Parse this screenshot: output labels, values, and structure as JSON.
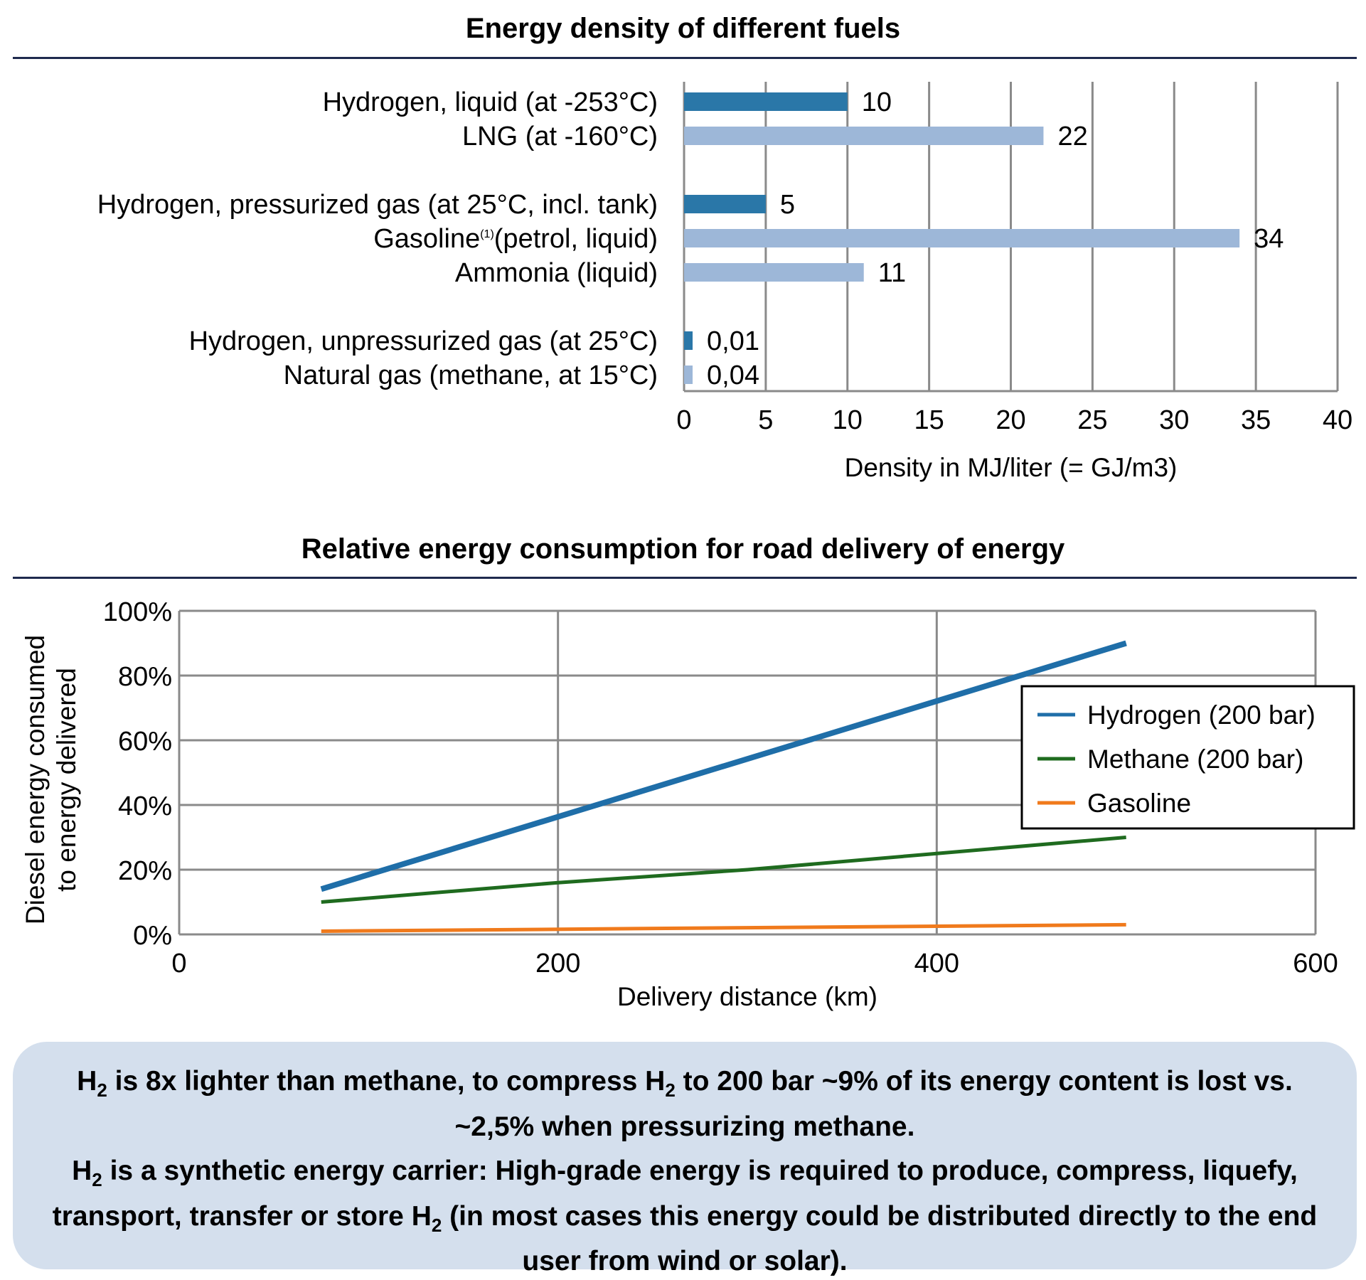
{
  "chart_data": [
    {
      "type": "bar",
      "orientation": "horizontal",
      "title": "Energy density of different fuels",
      "xlabel": "Density in MJ/liter (= GJ/m3)",
      "xlim": [
        0,
        40
      ],
      "xticks": [
        "0",
        "5",
        "10",
        "15",
        "20",
        "25",
        "30",
        "35",
        "40"
      ],
      "categories": [
        "Hydrogen, liquid (at -253°C)",
        "LNG (at -160°C)",
        "Hydrogen, pressurized gas (at 25°C, incl. tank)",
        "Gasoline(1)(petrol, liquid)",
        "Ammonia (liquid)",
        "Hydrogen, unpressurized gas (at 25°C)",
        "Natural gas (methane, at 15°C)"
      ],
      "category_parts": [
        {
          "main": "Hydrogen, liquid (at -253°C)"
        },
        {
          "main": "LNG (at -160°C)"
        },
        {
          "main": "Hydrogen, pressurized gas (at 25°C, incl. tank)"
        },
        {
          "main": "Gasoline",
          "sup": "(1)",
          "rest": "(petrol, liquid)"
        },
        {
          "main": "Ammonia (liquid)"
        },
        {
          "main": "Hydrogen, unpressurized gas (at 25°C)"
        },
        {
          "main": "Natural gas (methane, at 15°C)"
        }
      ],
      "values": [
        10,
        22,
        5,
        34,
        11,
        0.01,
        0.04
      ],
      "value_labels": [
        "10",
        "22",
        "5",
        "34",
        "11",
        "0,01",
        "0,04"
      ],
      "groups": [
        [
          0,
          1
        ],
        [
          2,
          3,
          4
        ],
        [
          5,
          6
        ]
      ],
      "bar_colors": [
        "#2a77a8",
        "#9db7d8",
        "#2a77a8",
        "#9db7d8",
        "#9db7d8",
        "#2a77a8",
        "#9db7d8"
      ],
      "grid": true
    },
    {
      "type": "line",
      "title": "Relative energy consumption for road delivery of energy",
      "xlabel": "Delivery distance (km)",
      "ylabel": [
        "Diesel energy consumed",
        "to energy delivered"
      ],
      "xlim": [
        0,
        600
      ],
      "ylim": [
        0,
        100
      ],
      "xticks": [
        "0",
        "200",
        "400",
        "600"
      ],
      "yticks": [
        "0%",
        "20%",
        "40%",
        "60%",
        "80%",
        "100%"
      ],
      "grid": true,
      "legend_position": "right",
      "series": [
        {
          "name": "Hydrogen (200 bar)",
          "color": "#1f6ea8",
          "x": [
            75,
            500
          ],
          "y": [
            14,
            90
          ]
        },
        {
          "name": "Methane (200 bar)",
          "color": "#1f6b1f",
          "x": [
            75,
            200,
            300,
            400,
            500
          ],
          "y": [
            10,
            16,
            20,
            25,
            30
          ]
        },
        {
          "name": "Gasoline",
          "color": "#f07a1c",
          "x": [
            75,
            500
          ],
          "y": [
            1,
            3
          ]
        }
      ]
    }
  ],
  "note": {
    "p1_a": "H",
    "p1_sub1": "2",
    "p1_b": " is 8x lighter than methane, to compress H",
    "p1_sub2": "2",
    "p1_c": " to 200 bar ~9% of its energy content is lost vs. ~2,5% when pressurizing methane.",
    "p2_a": "H",
    "p2_sub1": "2",
    "p2_b": " is a synthetic energy carrier: High-grade energy is required to produce, compress, liquefy, transport, transfer or store H",
    "p2_sub2": "2",
    "p2_c": " (in most cases this energy could be distributed directly to the end user from wind or solar)."
  }
}
